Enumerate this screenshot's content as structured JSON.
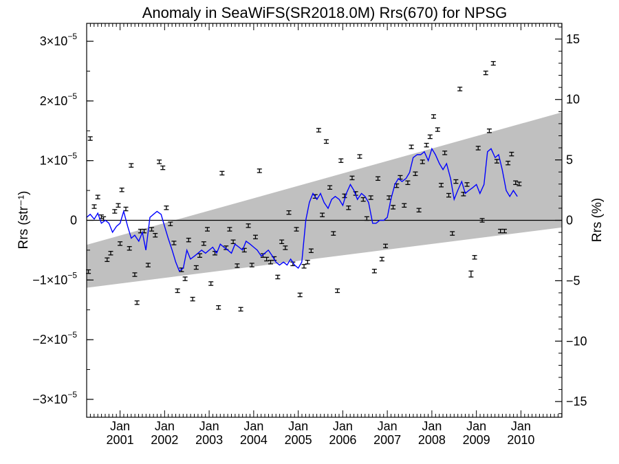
{
  "chart_data": {
    "type": "line",
    "title": "Anomaly in SeaWiFS(SR2018.0M) Rrs(670) for NPSG",
    "ylabel_left": "Rrs (str⁻¹)",
    "ylabel_right": "Rrs (%)",
    "x_range": [
      2000.25,
      2010.92
    ],
    "ylim": [
      -3.3e-05,
      3.3e-05
    ],
    "ylim_right": [
      -16.3,
      16.3
    ],
    "y_ticks_left": [
      {
        "value": 3e-05,
        "label": "3×10",
        "exp": "−5"
      },
      {
        "value": 2e-05,
        "label": "2×10",
        "exp": "−5"
      },
      {
        "value": 1e-05,
        "label": "1×10",
        "exp": "−5"
      },
      {
        "value": 0,
        "label": "0",
        "exp": ""
      },
      {
        "value": -1e-05,
        "label": "−1×10",
        "exp": "−5"
      },
      {
        "value": -2e-05,
        "label": "−2×10",
        "exp": "−5"
      },
      {
        "value": -3e-05,
        "label": "−3×10",
        "exp": "−5"
      }
    ],
    "y_ticks_right": [
      {
        "value": 15,
        "label": "15"
      },
      {
        "value": 10,
        "label": "10"
      },
      {
        "value": 5,
        "label": "5"
      },
      {
        "value": 0,
        "label": "0"
      },
      {
        "value": -5,
        "label": "−5"
      },
      {
        "value": -10,
        "label": "−10"
      },
      {
        "value": -15,
        "label": "−15"
      }
    ],
    "x_ticks": [
      {
        "value": 2001.0,
        "month": "Jan",
        "year": "2001"
      },
      {
        "value": 2002.0,
        "month": "Jan",
        "year": "2002"
      },
      {
        "value": 2003.0,
        "month": "Jan",
        "year": "2003"
      },
      {
        "value": 2004.0,
        "month": "Jan",
        "year": "2004"
      },
      {
        "value": 2005.0,
        "month": "Jan",
        "year": "2005"
      },
      {
        "value": 2006.0,
        "month": "Jan",
        "year": "2006"
      },
      {
        "value": 2007.0,
        "month": "Jan",
        "year": "2007"
      },
      {
        "value": 2008.0,
        "month": "Jan",
        "year": "2008"
      },
      {
        "value": 2009.0,
        "month": "Jan",
        "year": "2009"
      },
      {
        "value": 2010.0,
        "month": "Jan",
        "year": "2010"
      }
    ],
    "zero_line": true,
    "band": {
      "color": "#c0c0c0",
      "x": [
        2000.25,
        2010.92
      ],
      "lower": [
        -1.13e-05,
        -1.2e-06
      ],
      "upper": [
        -4.1e-06,
        1.81e-05
      ]
    },
    "points": [
      {
        "x": 2000.29,
        "y": -8.6e-06,
        "err": 3e-07
      },
      {
        "x": 2000.33,
        "y": 1.37e-05,
        "err": 3e-07
      },
      {
        "x": 2000.42,
        "y": 2.3e-06,
        "err": 3e-07
      },
      {
        "x": 2000.5,
        "y": 3.9e-06,
        "err": 3e-07
      },
      {
        "x": 2000.58,
        "y": 6e-07,
        "err": 3e-07
      },
      {
        "x": 2000.63,
        "y": 3e-07,
        "err": 3e-07
      },
      {
        "x": 2000.71,
        "y": -6.6e-06,
        "err": 3e-07
      },
      {
        "x": 2000.79,
        "y": -5.5e-06,
        "err": 3e-07
      },
      {
        "x": 2000.88,
        "y": 1.5e-06,
        "err": 3e-07
      },
      {
        "x": 2000.96,
        "y": 2.5e-06,
        "err": 3e-07
      },
      {
        "x": 2001.0,
        "y": -3.9e-06,
        "err": 3e-07
      },
      {
        "x": 2001.04,
        "y": 5.1e-06,
        "err": 3e-07
      },
      {
        "x": 2001.13,
        "y": 1.9e-06,
        "err": 3e-07
      },
      {
        "x": 2001.21,
        "y": -4.7e-06,
        "err": 3e-07
      },
      {
        "x": 2001.25,
        "y": 9.2e-06,
        "err": 3e-07
      },
      {
        "x": 2001.33,
        "y": -9.1e-06,
        "err": 3e-07
      },
      {
        "x": 2001.38,
        "y": -1.38e-05,
        "err": 3e-07
      },
      {
        "x": 2001.46,
        "y": -1.8e-06,
        "err": 3e-07
      },
      {
        "x": 2001.54,
        "y": -1.8e-06,
        "err": 3e-07
      },
      {
        "x": 2001.63,
        "y": -7.5e-06,
        "err": 3e-07
      },
      {
        "x": 2001.71,
        "y": -1.5e-06,
        "err": 3e-07
      },
      {
        "x": 2001.79,
        "y": -2.5e-06,
        "err": 3e-07
      },
      {
        "x": 2001.88,
        "y": 9.8e-06,
        "err": 3e-07
      },
      {
        "x": 2001.96,
        "y": 8.8e-06,
        "err": 3e-07
      },
      {
        "x": 2002.04,
        "y": 2.1e-06,
        "err": 3e-07
      },
      {
        "x": 2002.13,
        "y": -6e-07,
        "err": 3e-07
      },
      {
        "x": 2002.21,
        "y": -3.8e-06,
        "err": 3e-07
      },
      {
        "x": 2002.29,
        "y": -1.18e-05,
        "err": 3e-07
      },
      {
        "x": 2002.38,
        "y": -8.3e-06,
        "err": 3e-07
      },
      {
        "x": 2002.46,
        "y": -9.8e-06,
        "err": 3e-07
      },
      {
        "x": 2002.54,
        "y": -3.3e-06,
        "err": 3e-07
      },
      {
        "x": 2002.63,
        "y": -1.32e-05,
        "err": 3e-07
      },
      {
        "x": 2002.71,
        "y": -7.9e-06,
        "err": 3e-07
      },
      {
        "x": 2002.79,
        "y": -5.9e-06,
        "err": 3e-07
      },
      {
        "x": 2002.88,
        "y": -3.9e-06,
        "err": 3e-07
      },
      {
        "x": 2002.96,
        "y": -1.5e-06,
        "err": 3e-07
      },
      {
        "x": 2003.04,
        "y": -1.06e-05,
        "err": 3e-07
      },
      {
        "x": 2003.13,
        "y": -5.5e-06,
        "err": 3e-07
      },
      {
        "x": 2003.21,
        "y": -1.46e-05,
        "err": 3e-07
      },
      {
        "x": 2003.29,
        "y": 7.9e-06,
        "err": 3e-07
      },
      {
        "x": 2003.38,
        "y": -4.6e-06,
        "err": 3e-07
      },
      {
        "x": 2003.46,
        "y": -1.5e-06,
        "err": 3e-07
      },
      {
        "x": 2003.54,
        "y": -3.6e-06,
        "err": 3e-07
      },
      {
        "x": 2003.63,
        "y": -7.6e-06,
        "err": 3e-07
      },
      {
        "x": 2003.71,
        "y": -1.49e-05,
        "err": 3e-07
      },
      {
        "x": 2003.79,
        "y": -5e-06,
        "err": 3e-07
      },
      {
        "x": 2003.88,
        "y": -9e-07,
        "err": 3e-07
      },
      {
        "x": 2003.96,
        "y": -7.5e-06,
        "err": 3e-07
      },
      {
        "x": 2004.04,
        "y": -2.8e-06,
        "err": 3e-07
      },
      {
        "x": 2004.13,
        "y": 8.3e-06,
        "err": 3e-07
      },
      {
        "x": 2004.21,
        "y": -5.9e-06,
        "err": 3e-07
      },
      {
        "x": 2004.29,
        "y": -6.5e-06,
        "err": 3e-07
      },
      {
        "x": 2004.38,
        "y": -7e-06,
        "err": 3e-07
      },
      {
        "x": 2004.46,
        "y": -6.4e-06,
        "err": 3e-07
      },
      {
        "x": 2004.54,
        "y": -9.5e-06,
        "err": 3e-07
      },
      {
        "x": 2004.63,
        "y": -3.6e-06,
        "err": 3e-07
      },
      {
        "x": 2004.71,
        "y": -4.6e-06,
        "err": 3e-07
      },
      {
        "x": 2004.79,
        "y": 1.3e-06,
        "err": 3e-07
      },
      {
        "x": 2004.88,
        "y": -7.3e-06,
        "err": 3e-07
      },
      {
        "x": 2004.96,
        "y": -1.5e-06,
        "err": 3e-07
      },
      {
        "x": 2005.04,
        "y": -1.25e-05,
        "err": 3e-07
      },
      {
        "x": 2005.13,
        "y": -7.7e-06,
        "err": 3e-07
      },
      {
        "x": 2005.21,
        "y": -7e-06,
        "err": 3e-07
      },
      {
        "x": 2005.29,
        "y": -5.1e-06,
        "err": 3e-07
      },
      {
        "x": 2005.38,
        "y": 4e-06,
        "err": 3e-07
      },
      {
        "x": 2005.46,
        "y": 1.51e-05,
        "err": 3e-07
      },
      {
        "x": 2005.54,
        "y": 9e-07,
        "err": 3e-07
      },
      {
        "x": 2005.63,
        "y": 1.32e-05,
        "err": 3e-07
      },
      {
        "x": 2005.71,
        "y": 5.5e-06,
        "err": 3e-07
      },
      {
        "x": 2005.79,
        "y": -2.2e-06,
        "err": 3e-07
      },
      {
        "x": 2005.88,
        "y": -1.18e-05,
        "err": 3e-07
      },
      {
        "x": 2005.96,
        "y": 1e-05,
        "err": 3e-07
      },
      {
        "x": 2006.04,
        "y": 4.1e-06,
        "err": 3e-07
      },
      {
        "x": 2006.13,
        "y": 2.1e-06,
        "err": 3e-07
      },
      {
        "x": 2006.21,
        "y": 7.1e-06,
        "err": 3e-07
      },
      {
        "x": 2006.29,
        "y": 4.5e-06,
        "err": 3e-07
      },
      {
        "x": 2006.38,
        "y": 1.07e-05,
        "err": 3e-07
      },
      {
        "x": 2006.46,
        "y": 3.5e-06,
        "err": 3e-07
      },
      {
        "x": 2006.54,
        "y": 3e-07,
        "err": 3e-07
      },
      {
        "x": 2006.63,
        "y": 3.8e-06,
        "err": 3e-07
      },
      {
        "x": 2006.71,
        "y": -8.5e-06,
        "err": 3e-07
      },
      {
        "x": 2006.79,
        "y": 7e-06,
        "err": 3e-07
      },
      {
        "x": 2006.88,
        "y": -6.5e-06,
        "err": 3e-07
      },
      {
        "x": 2006.96,
        "y": -4.3e-06,
        "err": 3e-07
      },
      {
        "x": 2007.04,
        "y": 3.8e-06,
        "err": 3e-07
      },
      {
        "x": 2007.13,
        "y": 2.2e-06,
        "err": 3e-07
      },
      {
        "x": 2007.21,
        "y": 5.8e-06,
        "err": 3e-07
      },
      {
        "x": 2007.29,
        "y": 7.2e-06,
        "err": 3e-07
      },
      {
        "x": 2007.38,
        "y": 2.5e-06,
        "err": 3e-07
      },
      {
        "x": 2007.46,
        "y": 6.3e-06,
        "err": 3e-07
      },
      {
        "x": 2007.54,
        "y": 1.23e-05,
        "err": 3e-07
      },
      {
        "x": 2007.63,
        "y": 7.8e-06,
        "err": 3e-07
      },
      {
        "x": 2007.71,
        "y": 1.7e-06,
        "err": 3e-07
      },
      {
        "x": 2007.79,
        "y": 9.8e-06,
        "err": 3e-07
      },
      {
        "x": 2007.88,
        "y": 1.26e-05,
        "err": 3e-07
      },
      {
        "x": 2007.96,
        "y": 1.4e-05,
        "err": 3e-07
      },
      {
        "x": 2008.04,
        "y": 1.74e-05,
        "err": 3e-07
      },
      {
        "x": 2008.13,
        "y": 1.52e-05,
        "err": 3e-07
      },
      {
        "x": 2008.21,
        "y": 5.9e-06,
        "err": 3e-07
      },
      {
        "x": 2008.29,
        "y": 1.13e-05,
        "err": 3e-07
      },
      {
        "x": 2008.38,
        "y": 4.2e-06,
        "err": 3e-07
      },
      {
        "x": 2008.46,
        "y": -2.2e-06,
        "err": 3e-07
      },
      {
        "x": 2008.54,
        "y": 6.5e-06,
        "err": 3e-07
      },
      {
        "x": 2008.63,
        "y": 2.2e-05,
        "err": 3e-07
      },
      {
        "x": 2008.71,
        "y": 4.4e-06,
        "err": 3e-07
      },
      {
        "x": 2008.79,
        "y": 6e-06,
        "err": 3e-07
      },
      {
        "x": 2008.88,
        "y": -9e-06,
        "err": 5e-07
      },
      {
        "x": 2008.96,
        "y": -6.2e-06,
        "err": 3e-07
      },
      {
        "x": 2009.04,
        "y": 1.21e-05,
        "err": 3e-07
      },
      {
        "x": 2009.13,
        "y": 0.0,
        "err": 3e-07
      },
      {
        "x": 2009.21,
        "y": 2.47e-05,
        "err": 3e-07
      },
      {
        "x": 2009.29,
        "y": 1.5e-05,
        "err": 3e-07
      },
      {
        "x": 2009.38,
        "y": 2.63e-05,
        "err": 3e-07
      },
      {
        "x": 2009.46,
        "y": 9.9e-06,
        "err": 3e-07
      },
      {
        "x": 2009.54,
        "y": -1.8e-06,
        "err": 3e-07
      },
      {
        "x": 2009.63,
        "y": -1.8e-06,
        "err": 3e-07
      },
      {
        "x": 2009.71,
        "y": 9.6e-06,
        "err": 3e-07
      },
      {
        "x": 2009.79,
        "y": 1.11e-05,
        "err": 3e-07
      },
      {
        "x": 2009.88,
        "y": 6.3e-06,
        "err": 3e-07
      },
      {
        "x": 2009.96,
        "y": 6.1e-06,
        "err": 3e-07
      }
    ],
    "series": [
      {
        "color": "#0000ff",
        "x": [
          2000.25,
          2000.33,
          2000.42,
          2000.5,
          2000.58,
          2000.67,
          2000.75,
          2000.83,
          2000.92,
          2001.0,
          2001.08,
          2001.17,
          2001.25,
          2001.33,
          2001.42,
          2001.5,
          2001.58,
          2001.67,
          2001.75,
          2001.83,
          2001.92,
          2002.0,
          2002.08,
          2002.17,
          2002.25,
          2002.33,
          2002.42,
          2002.5,
          2002.58,
          2002.67,
          2002.75,
          2002.83,
          2002.92,
          2003.0,
          2003.08,
          2003.17,
          2003.25,
          2003.33,
          2003.42,
          2003.5,
          2003.58,
          2003.67,
          2003.75,
          2003.83,
          2003.92,
          2004.0,
          2004.08,
          2004.17,
          2004.25,
          2004.33,
          2004.42,
          2004.5,
          2004.58,
          2004.67,
          2004.75,
          2004.83,
          2004.92,
          2005.0,
          2005.08,
          2005.17,
          2005.25,
          2005.33,
          2005.42,
          2005.5,
          2005.58,
          2005.67,
          2005.75,
          2005.83,
          2005.92,
          2006.0,
          2006.08,
          2006.17,
          2006.25,
          2006.33,
          2006.42,
          2006.5,
          2006.58,
          2006.67,
          2006.75,
          2006.83,
          2006.92,
          2007.0,
          2007.08,
          2007.17,
          2007.25,
          2007.33,
          2007.42,
          2007.5,
          2007.58,
          2007.67,
          2007.75,
          2007.83,
          2007.92,
          2008.0,
          2008.08,
          2008.17,
          2008.25,
          2008.33,
          2008.42,
          2008.5,
          2008.58,
          2008.67,
          2008.75,
          2008.83,
          2008.92,
          2009.0,
          2009.08,
          2009.17,
          2009.25,
          2009.33,
          2009.42,
          2009.5,
          2009.58,
          2009.67,
          2009.75,
          2009.83,
          2009.92
        ],
        "y": [
          5e-07,
          1e-06,
          2e-07,
          1.2e-06,
          -5e-07,
          0.0,
          -5e-07,
          -2e-06,
          -1e-06,
          -5e-07,
          1.5e-06,
          -1e-06,
          -3e-06,
          -2.5e-06,
          -3.5e-06,
          -2e-06,
          -5e-06,
          5e-07,
          1e-06,
          1.5e-06,
          1e-06,
          -1e-06,
          -3e-06,
          -5e-06,
          -7e-06,
          -8.5e-06,
          -8e-06,
          -5e-06,
          -6.5e-06,
          -6e-06,
          -5.5e-06,
          -5e-06,
          -5.5e-06,
          -5e-06,
          -4.5e-06,
          -5.5e-06,
          -4e-06,
          -4.5e-06,
          -5e-06,
          -5.5e-06,
          -4e-06,
          -4.5e-06,
          -5e-06,
          -3.5e-06,
          -4e-06,
          -4.5e-06,
          -5e-06,
          -6e-06,
          -5.5e-06,
          -5e-06,
          -6e-06,
          -7e-06,
          -7.5e-06,
          -7e-06,
          -7.5e-06,
          -6.5e-06,
          -7.5e-06,
          -8e-06,
          -7e-06,
          0.0,
          3e-06,
          4.5e-06,
          3.5e-06,
          4.5e-06,
          3e-06,
          2e-06,
          3.5e-06,
          4e-06,
          3.5e-06,
          2.5e-06,
          4.5e-06,
          6e-06,
          5e-06,
          3.5e-06,
          4.5e-06,
          4e-06,
          3e-06,
          -5e-07,
          -5e-07,
          0.0,
          0.0,
          5e-07,
          3.5e-06,
          6e-06,
          7e-06,
          6.5e-06,
          7e-06,
          8e-06,
          1.05e-05,
          1.1e-05,
          1.1e-05,
          1.15e-05,
          1e-05,
          1.2e-05,
          1.1e-05,
          9.5e-06,
          8.5e-06,
          9.5e-06,
          7e-06,
          3.5e-06,
          5e-06,
          6.5e-06,
          4.5e-06,
          5e-06,
          5.5e-06,
          6e-06,
          4.5e-06,
          6e-06,
          1.15e-05,
          1.2e-05,
          1.05e-05,
          1.1e-05,
          8.5e-06,
          5e-06,
          4e-06,
          5e-06,
          4e-06
        ]
      }
    ]
  }
}
